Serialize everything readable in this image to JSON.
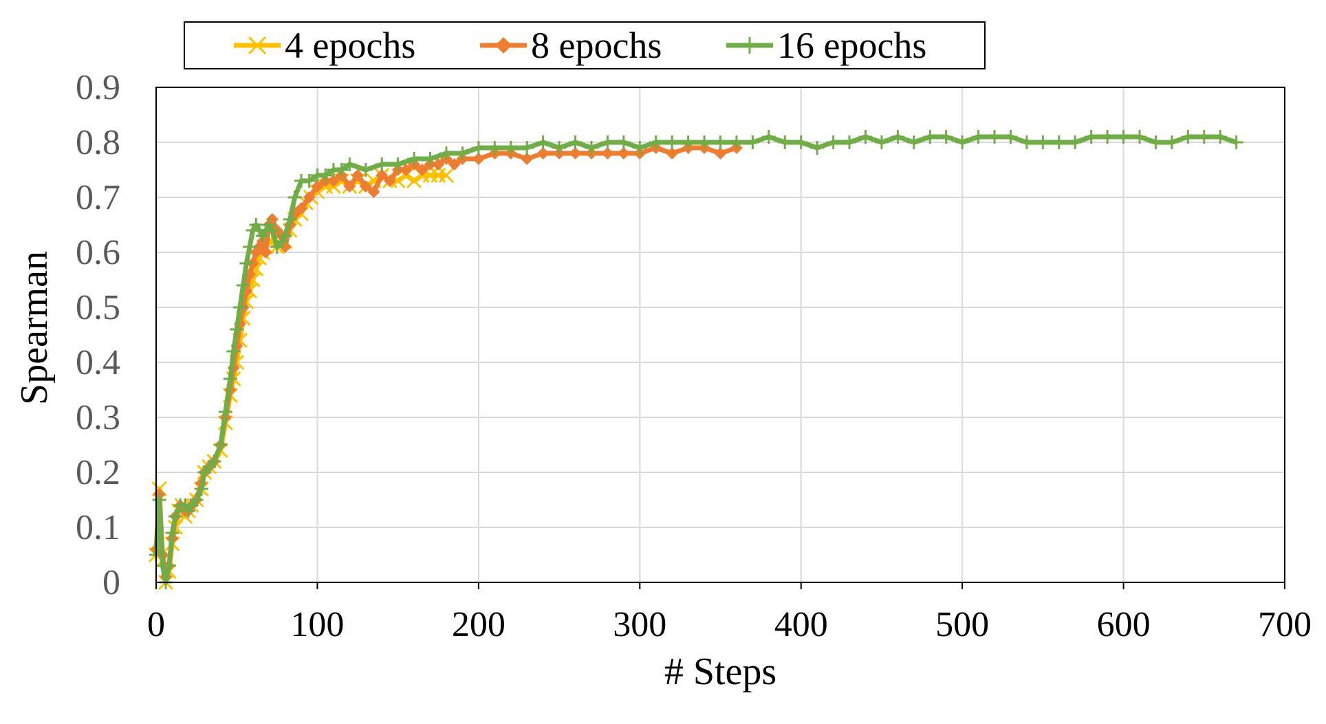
{
  "chart_data": {
    "type": "line",
    "title": "",
    "xlabel": "# Steps",
    "ylabel": "Spearman",
    "xlim": [
      0,
      700
    ],
    "ylim": [
      0,
      0.9
    ],
    "x_ticks": [
      0,
      100,
      200,
      300,
      400,
      500,
      600,
      700
    ],
    "y_ticks": [
      0,
      0.1,
      0.2,
      0.3,
      0.4,
      0.5,
      0.6,
      0.7,
      0.8,
      0.9
    ],
    "x_tick_labels": [
      "0",
      "100",
      "200",
      "300",
      "400",
      "500",
      "600",
      "700"
    ],
    "y_tick_labels": [
      "0",
      "0.1",
      "0.2",
      "0.3",
      "0.4",
      "0.5",
      "0.6",
      "0.7",
      "0.8",
      "0.9"
    ],
    "grid": true,
    "legend_position": "top",
    "series": [
      {
        "name": "4 epochs",
        "color": "#FFC000",
        "marker": "x",
        "x": [
          0,
          2,
          4,
          6,
          8,
          10,
          12,
          14,
          16,
          18,
          20,
          22,
          25,
          28,
          30,
          33,
          36,
          40,
          43,
          46,
          48,
          50,
          52,
          54,
          56,
          58,
          60,
          62,
          64,
          66,
          68,
          70,
          72,
          75,
          78,
          80,
          83,
          86,
          90,
          93,
          96,
          100,
          105,
          110,
          115,
          120,
          125,
          130,
          135,
          140,
          145,
          150,
          155,
          160,
          165,
          170,
          175,
          180
        ],
        "values": [
          0.05,
          0.17,
          0.04,
          0.0,
          0.02,
          0.07,
          0.1,
          0.13,
          0.14,
          0.12,
          0.13,
          0.14,
          0.15,
          0.17,
          0.2,
          0.21,
          0.22,
          0.24,
          0.29,
          0.34,
          0.37,
          0.4,
          0.44,
          0.48,
          0.51,
          0.53,
          0.55,
          0.57,
          0.59,
          0.6,
          0.61,
          0.62,
          0.62,
          0.61,
          0.62,
          0.62,
          0.64,
          0.66,
          0.67,
          0.69,
          0.7,
          0.71,
          0.72,
          0.72,
          0.73,
          0.72,
          0.73,
          0.72,
          0.73,
          0.74,
          0.73,
          0.73,
          0.74,
          0.73,
          0.74,
          0.74,
          0.74,
          0.74
        ]
      },
      {
        "name": "8 epochs",
        "color": "#ED7D31",
        "marker": "diamond",
        "x": [
          0,
          2,
          4,
          6,
          8,
          10,
          12,
          15,
          18,
          20,
          22,
          25,
          28,
          30,
          33,
          36,
          40,
          43,
          46,
          48,
          50,
          52,
          54,
          56,
          58,
          60,
          62,
          64,
          66,
          68,
          70,
          72,
          75,
          78,
          80,
          83,
          86,
          90,
          95,
          100,
          105,
          110,
          115,
          120,
          125,
          130,
          135,
          140,
          145,
          150,
          155,
          160,
          165,
          170,
          175,
          180,
          185,
          190,
          200,
          210,
          220,
          230,
          240,
          250,
          260,
          270,
          280,
          290,
          300,
          310,
          320,
          330,
          340,
          350,
          360
        ],
        "values": [
          0.06,
          0.16,
          0.05,
          0.01,
          0.03,
          0.08,
          0.12,
          0.14,
          0.13,
          0.13,
          0.14,
          0.15,
          0.18,
          0.2,
          0.21,
          0.22,
          0.25,
          0.3,
          0.35,
          0.39,
          0.43,
          0.47,
          0.5,
          0.53,
          0.56,
          0.58,
          0.6,
          0.61,
          0.62,
          0.6,
          0.65,
          0.66,
          0.64,
          0.63,
          0.61,
          0.65,
          0.67,
          0.68,
          0.7,
          0.72,
          0.73,
          0.73,
          0.74,
          0.72,
          0.74,
          0.72,
          0.71,
          0.74,
          0.73,
          0.75,
          0.75,
          0.76,
          0.75,
          0.76,
          0.76,
          0.77,
          0.76,
          0.77,
          0.77,
          0.78,
          0.78,
          0.77,
          0.78,
          0.78,
          0.78,
          0.78,
          0.78,
          0.78,
          0.78,
          0.79,
          0.78,
          0.79,
          0.79,
          0.78,
          0.79
        ]
      },
      {
        "name": "16 epochs",
        "color": "#70AD47",
        "marker": "plus",
        "x": [
          0,
          2,
          4,
          6,
          8,
          10,
          12,
          15,
          18,
          20,
          22,
          25,
          28,
          30,
          33,
          36,
          40,
          43,
          46,
          48,
          50,
          52,
          54,
          56,
          58,
          60,
          62,
          64,
          66,
          68,
          70,
          72,
          75,
          78,
          80,
          83,
          86,
          90,
          95,
          100,
          105,
          110,
          115,
          120,
          130,
          140,
          150,
          160,
          170,
          180,
          190,
          200,
          210,
          220,
          230,
          240,
          250,
          260,
          270,
          280,
          290,
          300,
          310,
          320,
          330,
          340,
          350,
          360,
          370,
          380,
          390,
          400,
          410,
          420,
          430,
          440,
          450,
          460,
          470,
          480,
          490,
          500,
          510,
          520,
          530,
          540,
          550,
          560,
          570,
          580,
          590,
          600,
          610,
          620,
          630,
          640,
          650,
          660,
          670
        ],
        "values": [
          0.05,
          0.15,
          0.03,
          0.0,
          0.03,
          0.09,
          0.12,
          0.14,
          0.14,
          0.13,
          0.14,
          0.15,
          0.17,
          0.2,
          0.21,
          0.22,
          0.25,
          0.31,
          0.37,
          0.42,
          0.46,
          0.5,
          0.54,
          0.58,
          0.61,
          0.64,
          0.65,
          0.64,
          0.63,
          0.64,
          0.65,
          0.64,
          0.61,
          0.62,
          0.63,
          0.66,
          0.7,
          0.73,
          0.73,
          0.74,
          0.74,
          0.75,
          0.75,
          0.76,
          0.75,
          0.76,
          0.76,
          0.77,
          0.77,
          0.78,
          0.78,
          0.79,
          0.79,
          0.79,
          0.79,
          0.8,
          0.79,
          0.8,
          0.79,
          0.8,
          0.8,
          0.79,
          0.8,
          0.8,
          0.8,
          0.8,
          0.8,
          0.8,
          0.8,
          0.81,
          0.8,
          0.8,
          0.79,
          0.8,
          0.8,
          0.81,
          0.8,
          0.81,
          0.8,
          0.81,
          0.81,
          0.8,
          0.81,
          0.81,
          0.81,
          0.8,
          0.8,
          0.8,
          0.8,
          0.81,
          0.81,
          0.81,
          0.81,
          0.8,
          0.8,
          0.81,
          0.81,
          0.81,
          0.8
        ]
      }
    ]
  }
}
